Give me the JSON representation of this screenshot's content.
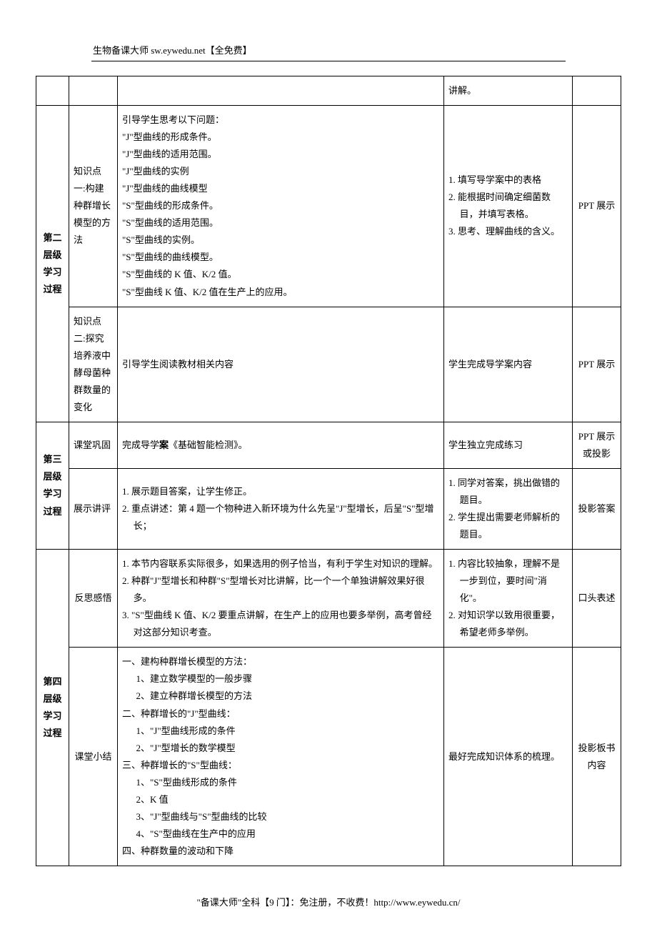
{
  "header": "生物备课大师  sw.eywedu.net【全免费】",
  "footer": "\"备课大师\"全科【9 门】：免注册，不收费！http://www.eywedu.cn/",
  "rows": {
    "r0_c4": "讲解。",
    "level2_label": "第二层级学习过程",
    "r1_c2": "知识点一:构建种群增长模型的方法",
    "r1_c3": [
      "引导学生思考以下问题：",
      "\"J\"型曲线的形成条件。",
      "\"J\"型曲线的适用范围。",
      "\"J\"型曲线的实例",
      "\"J\"型曲线的曲线模型",
      "\"S\"型曲线的形成条件。",
      "\"S\"型曲线的适用范围。",
      "\"S\"型曲线的实例。",
      "\"S\"型曲线的曲线模型。",
      "\"S\"型曲线的 K 值、K/2 值。",
      "\"S\"型曲线 K 值、K/2 值在生产上的应用。"
    ],
    "r1_c4": [
      "1. 填写导学案中的表格",
      "2. 能根据时间确定细菌数目，并填写表格。",
      "3. 思考、理解曲线的含义。"
    ],
    "r1_c5": "PPT 展示",
    "r2_c2": "知识点二:探究培养液中酵母菌种群数量的变化",
    "r2_c3": "引导学生阅读教材相关内容",
    "r2_c4": "学生完成导学案内容",
    "r2_c5": "PPT 展示",
    "level3_label": "第三层级学习过程",
    "r3_c2": "课堂巩固",
    "r3_c3_pre": "完成导学",
    "r3_c3_bold": "案",
    "r3_c3_post": "《基础智能检测》。",
    "r3_c4": "学生独立完成练习",
    "r3_c5": "PPT 展示或投影",
    "r4_c2": "展示讲评",
    "r4_c3": [
      "1. 展示题目答案，让学生修正。",
      "2. 重点讲述：第 4 题一个物种进入新环境为什么先呈\"J\"型增长，后呈\"S\"型增长；"
    ],
    "r4_c4": [
      "1. 同学对答案，挑出做错的题目。",
      "2. 学生提出需要老师解析的题目。"
    ],
    "r4_c5": "投影答案",
    "level4_label": "第四层级学习过程",
    "r5_c2": "反思感悟",
    "r5_c3": [
      "1. 本节内容联系实际很多，如果选用的例子恰当，有利于学生对知识的理解。",
      "2. 种群\"J\"型增长和种群\"S\"型增长对比讲解，比一个一个单独讲解效果好很多。",
      "3. \"S\"型曲线 K 值、K/2 要重点讲解，在生产上的应用也要多举例，高考曾经对这部分知识考查。"
    ],
    "r5_c4": [
      "1. 内容比较抽象，理解不是一步到位，要时间\"消化\"。",
      "2. 对知识学以致用很重要，希望老师多举例。"
    ],
    "r5_c5": "口头表述",
    "r6_c2": "课堂小结",
    "r6_c3": {
      "h1": "一、建构种群增长模型的方法：",
      "h1_items": [
        "1、建立数学模型的一般步骤",
        "2、建立种群增长模型的方法"
      ],
      "h2": "二、种群增长的\"J\"型曲线：",
      "h2_items": [
        "1、\"J\"型曲线形成的条件",
        "2、\"J\"型增长的数学模型"
      ],
      "h3": "三、种群增长的\"S\"型曲线：",
      "h3_items": [
        "1、\"S\"型曲线形成的条件",
        "2、K 值",
        "3、\"J\"型曲线与\"S\"型曲线的比较",
        "4、\"S\"型曲线在生产中的应用"
      ],
      "h4": "四、种群数量的波动和下降"
    },
    "r6_c4": "最好完成知识体系的梳理。",
    "r6_c5": "投影板书内容"
  }
}
